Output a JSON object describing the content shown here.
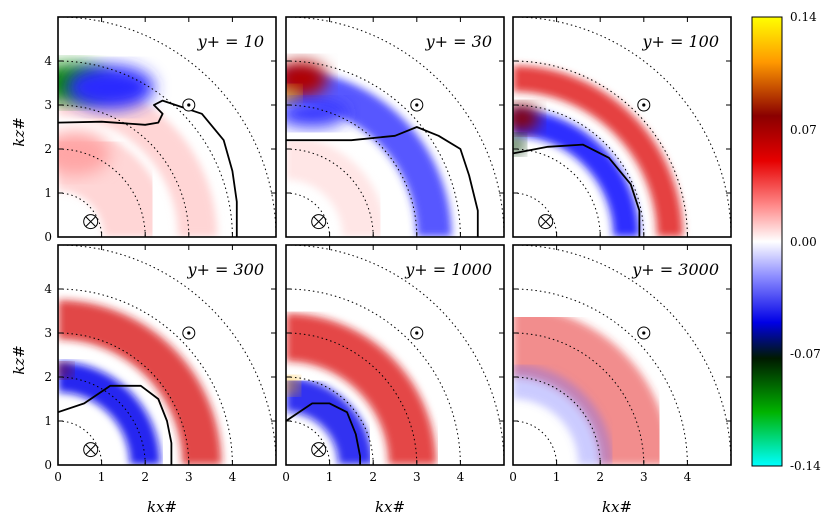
{
  "chart_data": {
    "type": "heatmap",
    "description_note": "6-panel polar-wavenumber spectral maps",
    "xlabel": "k_x^#",
    "ylabel": "k_z^#",
    "xlabel_display": "kx#",
    "ylabel_display": "kz#",
    "xlim": [
      0,
      5
    ],
    "ylim": [
      0,
      5
    ],
    "x_ticks": [
      "0",
      "1",
      "2",
      "3",
      "4"
    ],
    "y_ticks": [
      "0",
      "1",
      "2",
      "3",
      "4"
    ],
    "dotted_circle_radii": [
      1,
      2,
      3,
      4,
      5
    ],
    "markers": {
      "out_of_plane_symbol": "⊙",
      "out_of_plane_pos": [
        3,
        3
      ],
      "into_plane_symbol": "⊗",
      "into_plane_pos": [
        0.75,
        0.35
      ]
    },
    "panels": [
      {
        "label": "y+ = 10",
        "has_into_marker": true,
        "contour": [
          [
            0,
            2.6
          ],
          [
            1,
            2.62
          ],
          [
            2,
            2.55
          ],
          [
            2.3,
            2.6
          ],
          [
            2.4,
            2.8
          ],
          [
            2.2,
            3.0
          ],
          [
            2.4,
            3.1
          ],
          [
            3.3,
            2.8
          ],
          [
            3.8,
            2.2
          ],
          [
            4.0,
            1.5
          ],
          [
            4.1,
            0.8
          ],
          [
            4.1,
            0
          ]
        ]
      },
      {
        "label": "y+ = 30",
        "has_into_marker": true,
        "contour": [
          [
            0,
            2.2
          ],
          [
            1.5,
            2.2
          ],
          [
            2.5,
            2.3
          ],
          [
            3.0,
            2.5
          ],
          [
            3.5,
            2.3
          ],
          [
            4.0,
            2.0
          ],
          [
            4.2,
            1.4
          ],
          [
            4.4,
            0.6
          ],
          [
            4.4,
            0
          ]
        ]
      },
      {
        "label": "y+ = 100",
        "has_into_marker": true,
        "contour": [
          [
            0,
            1.9
          ],
          [
            0.8,
            2.05
          ],
          [
            1.6,
            2.1
          ],
          [
            2.2,
            1.8
          ],
          [
            2.7,
            1.2
          ],
          [
            2.9,
            0.6
          ],
          [
            2.9,
            0
          ]
        ]
      },
      {
        "label": "y+ = 300",
        "has_into_marker": true,
        "contour": [
          [
            0,
            1.2
          ],
          [
            0.6,
            1.4
          ],
          [
            1.2,
            1.8
          ],
          [
            1.9,
            1.8
          ],
          [
            2.3,
            1.5
          ],
          [
            2.5,
            1.0
          ],
          [
            2.6,
            0.5
          ],
          [
            2.6,
            0
          ]
        ]
      },
      {
        "label": "y+ = 1000",
        "has_into_marker": true,
        "contour": [
          [
            0,
            1.0
          ],
          [
            0.6,
            1.4
          ],
          [
            1.0,
            1.4
          ],
          [
            1.4,
            1.2
          ],
          [
            1.6,
            0.7
          ],
          [
            1.7,
            0.2
          ],
          [
            1.7,
            0
          ]
        ]
      },
      {
        "label": "y+ = 3000",
        "has_into_marker": false,
        "contour": []
      }
    ],
    "colorbar": {
      "colormap": "cyan-green-black-blue-white-red-darkred-orange-yellow",
      "vmin": -0.14,
      "vmax": 0.14,
      "ticks": [
        "0.14",
        "0.07",
        "0.00",
        "-0.07",
        "-0.14"
      ],
      "stops": [
        "#ffff00",
        "#ff9900",
        "#8a0000",
        "#e60000",
        "#ff7a7a",
        "#ffffff",
        "#7a7aff",
        "#0000e6",
        "#001a00",
        "#00b300",
        "#00ffff"
      ]
    }
  }
}
